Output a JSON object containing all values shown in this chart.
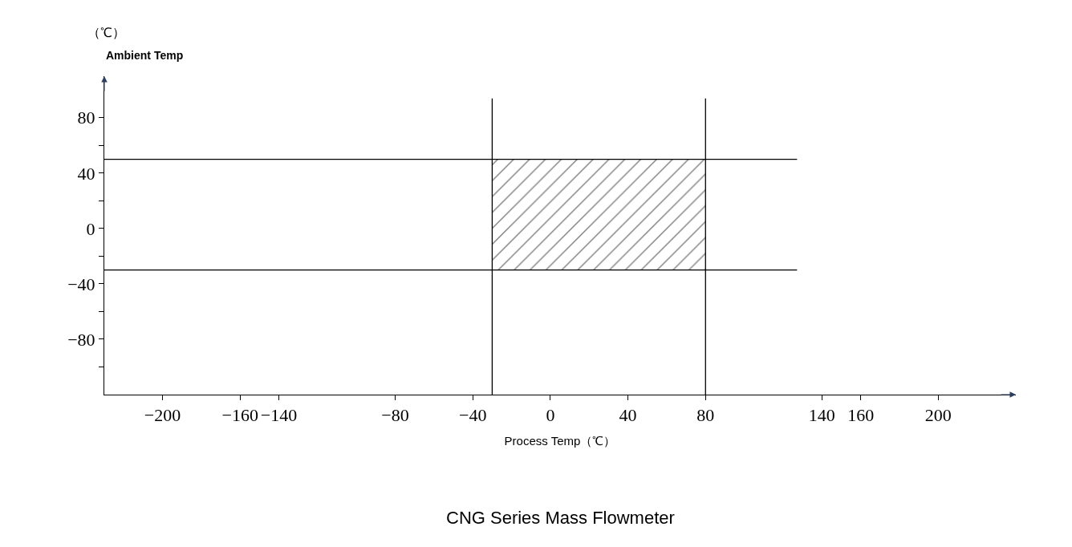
{
  "chart_data": {
    "type": "bar",
    "xlabel": "Process Temp（℃）",
    "ylabel": "Ambient Temp",
    "annotations": [
      "（℃）",
      "CNG Series Mass Flowmeter"
    ],
    "series": [
      {
        "color": "#000000",
        "x": [
          25
        ],
        "values": [
          80
        ],
        "base": [
          -30
        ]
      }
    ],
    "ref_lines": [
      {
        "axis": "x",
        "value": -30,
        "color": "#000000"
      },
      {
        "axis": "x",
        "value": 80,
        "color": "#000000"
      },
      {
        "axis": "y",
        "value": 50,
        "color": "#000000"
      },
      {
        "axis": "y",
        "value": -30,
        "color": "#000000"
      }
    ],
    "xlim": [
      -230,
      240
    ],
    "ylim": [
      -120,
      110
    ],
    "xticks": [
      -200,
      -160,
      -140,
      -80,
      -40,
      0,
      40,
      80,
      140,
      160,
      200
    ],
    "yticks": [
      80,
      {
        "value": 60,
        "label": null
      },
      40,
      {
        "value": 20,
        "label": null
      },
      0,
      {
        "value": -20,
        "label": null
      },
      -40,
      {
        "value": -60,
        "label": null
      },
      -80,
      {
        "value": -100,
        "label": null
      }
    ],
    "tick_labels": true
  }
}
